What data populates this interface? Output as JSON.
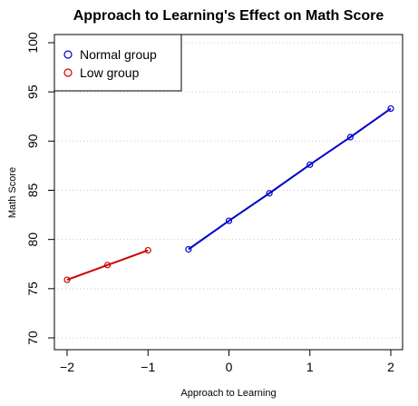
{
  "chart_data": {
    "type": "line",
    "title": "Approach to Learning's Effect on Math Score",
    "xlabel": "Approach to Learning",
    "ylabel": "Math Score",
    "xlim": [
      -2.0,
      2.0
    ],
    "ylim": [
      70,
      100
    ],
    "x_ticks": [
      "−2",
      "−1",
      "0",
      "1",
      "2"
    ],
    "y_ticks": [
      "70",
      "75",
      "80",
      "85",
      "90",
      "95",
      "100"
    ],
    "grid": "horizontal dotted",
    "legend_position": "top-left",
    "series": [
      {
        "name": "Normal group",
        "color": "#0000cc",
        "x": [
          -0.5,
          0.0,
          0.5,
          1.0,
          1.5,
          2.0
        ],
        "y": [
          79.0,
          81.9,
          84.7,
          87.6,
          90.4,
          93.3
        ]
      },
      {
        "name": "Low group",
        "color": "#cc0000",
        "x": [
          -2.0,
          -1.5,
          -1.0
        ],
        "y": [
          75.9,
          77.4,
          78.9
        ]
      }
    ]
  }
}
